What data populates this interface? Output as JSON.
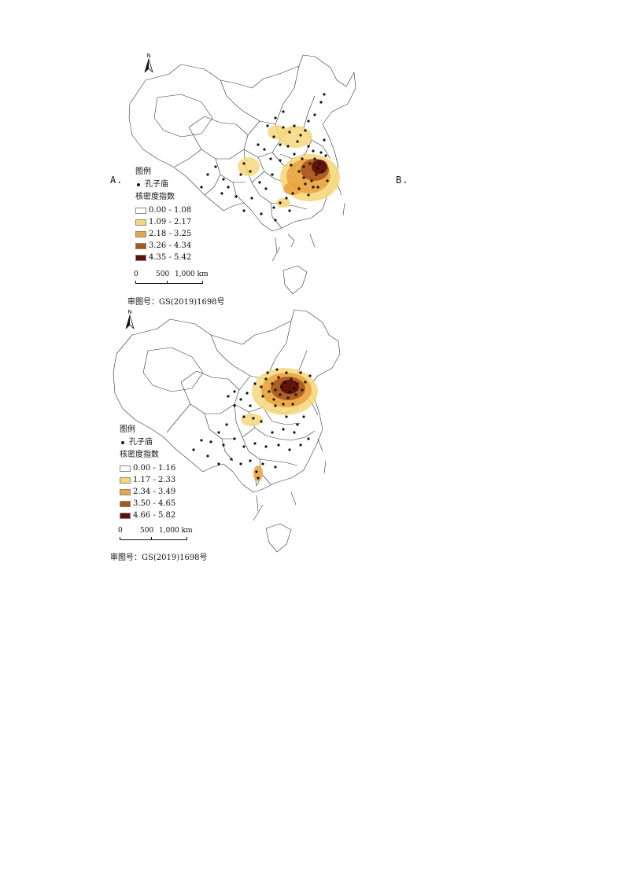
{
  "options": {
    "a": "A.",
    "b": "B."
  },
  "maps": [
    {
      "legend_title": "图例",
      "point_label": "孔子庙",
      "density_label": "核密度指数",
      "classes": [
        {
          "range": "0.00 - 1.08",
          "color": "#ffffff"
        },
        {
          "range": "1.09 - 2.17",
          "color": "#f6d77c"
        },
        {
          "range": "2.18 - 3.25",
          "color": "#eaa544"
        },
        {
          "range": "3.26 - 4.34",
          "color": "#a9571f"
        },
        {
          "range": "4.35 - 5.42",
          "color": "#5e0f0a"
        }
      ],
      "scale": [
        "0",
        "500",
        "1,000 km"
      ],
      "north": "N",
      "approval": "审图号：GS(2019)1698号"
    },
    {
      "legend_title": "图例",
      "point_label": "孔子庙",
      "density_label": "核密度指数",
      "classes": [
        {
          "range": "0.00 - 1.16",
          "color": "#ffffff"
        },
        {
          "range": "1.17 - 2.33",
          "color": "#f6d77c"
        },
        {
          "range": "2.34 - 3.49",
          "color": "#eaa544"
        },
        {
          "range": "3.50 - 4.65",
          "color": "#a9571f"
        },
        {
          "range": "4.66 - 5.82",
          "color": "#5e0f0a"
        }
      ],
      "scale": [
        "0",
        "500",
        "1,000 km"
      ],
      "north": "N",
      "approval": "审图号：GS(2019)1698号"
    }
  ]
}
